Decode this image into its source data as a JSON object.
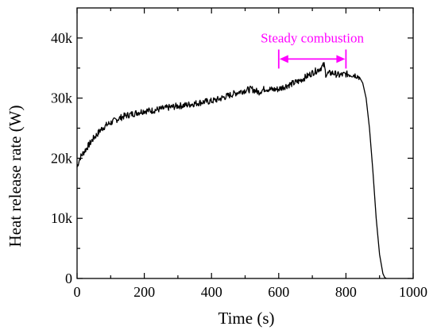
{
  "chart_data": {
    "type": "line",
    "title": "",
    "xlabel": "Time (s)",
    "ylabel": "Heat release rate (W)",
    "xlim": [
      0,
      1000
    ],
    "ylim": [
      0,
      45000
    ],
    "x_ticks": [
      0,
      200,
      400,
      600,
      800,
      1000
    ],
    "x_tick_labels": [
      "0",
      "200",
      "400",
      "600",
      "800",
      "1000"
    ],
    "y_ticks": [
      0,
      10000,
      20000,
      30000,
      40000
    ],
    "y_tick_labels": [
      "0",
      "10k",
      "20k",
      "30k",
      "40k"
    ],
    "grid": false,
    "line_color": "#000000",
    "series": [
      {
        "x": [
          0,
          5,
          10,
          20,
          30,
          40,
          50,
          60,
          70,
          80,
          90,
          100,
          120,
          140,
          160,
          180,
          200,
          220,
          240,
          260,
          280,
          300,
          320,
          340,
          360,
          380,
          400,
          420,
          440,
          460,
          480,
          500,
          520,
          540,
          560,
          580,
          600,
          620,
          640,
          660,
          680,
          700,
          720,
          735,
          740,
          760,
          780,
          800,
          820,
          830,
          840,
          850,
          860,
          870,
          880,
          890,
          900,
          910,
          915,
          920
        ],
        "y": [
          18500,
          19500,
          20200,
          21000,
          21800,
          22600,
          23400,
          24000,
          24700,
          25200,
          25600,
          25900,
          26500,
          27000,
          27300,
          27600,
          27900,
          27900,
          28100,
          28300,
          28500,
          28700,
          28800,
          29000,
          29200,
          29400,
          29500,
          29800,
          30200,
          30600,
          31000,
          31300,
          31500,
          31000,
          31600,
          31400,
          31500,
          32000,
          32400,
          32800,
          33500,
          34200,
          34800,
          35500,
          34000,
          34200,
          33800,
          34000,
          33900,
          33800,
          33500,
          32500,
          30000,
          25000,
          18000,
          10000,
          4000,
          800,
          200,
          0
        ]
      }
    ]
  },
  "annotation": {
    "label": "Steady combustion",
    "color": "#ff00ff",
    "x_start": 600,
    "x_end": 800,
    "y_value": 36500
  }
}
